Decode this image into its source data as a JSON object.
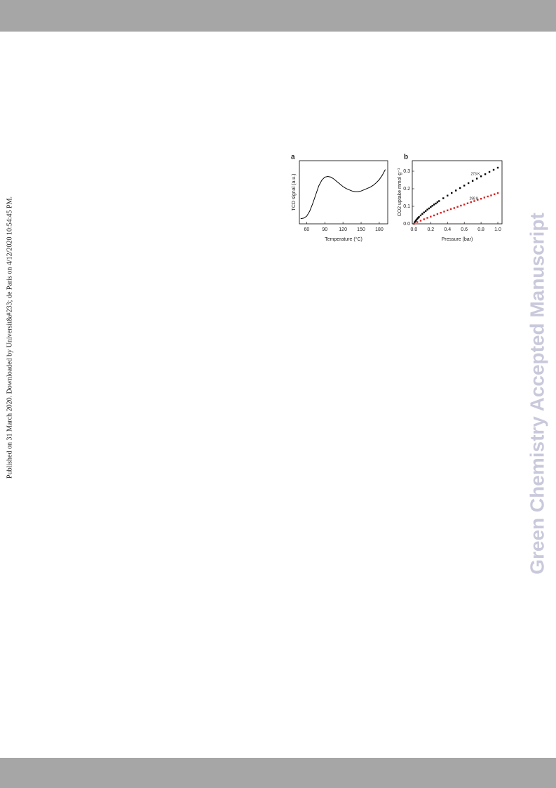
{
  "side_note": "Published on 31 March 2020. Downloaded by Universit&#233; de Paris on 4/12/2020 10:54:45 PM.",
  "watermark": "Green Chemistry Accepted Manuscript",
  "chart_data": [
    {
      "type": "line",
      "panel_label": "a",
      "xlabel": "Temperature (°C)",
      "ylabel": "TCD signal (a.u.)",
      "color": "#000000",
      "x": [
        50,
        55,
        60,
        65,
        70,
        75,
        80,
        85,
        90,
        95,
        100,
        105,
        110,
        115,
        120,
        125,
        130,
        135,
        140,
        145,
        150,
        155,
        160,
        165,
        170,
        175,
        180,
        185,
        190
      ],
      "values": [
        0.08,
        0.09,
        0.12,
        0.2,
        0.32,
        0.46,
        0.6,
        0.69,
        0.74,
        0.75,
        0.74,
        0.71,
        0.67,
        0.63,
        0.59,
        0.56,
        0.54,
        0.52,
        0.51,
        0.51,
        0.52,
        0.54,
        0.56,
        0.58,
        0.61,
        0.65,
        0.7,
        0.77,
        0.86
      ],
      "xlim": [
        48,
        194
      ],
      "ylim": [
        0,
        1
      ],
      "xticks": [
        60,
        90,
        120,
        150,
        180
      ]
    },
    {
      "type": "scatter",
      "panel_label": "b",
      "xlabel": "Pressure (bar)",
      "ylabel": "CO2 uptake mmol·g⁻¹",
      "series": [
        {
          "name": "273 K",
          "color": "#000000",
          "x": [
            0.01,
            0.02,
            0.03,
            0.04,
            0.05,
            0.06,
            0.08,
            0.1,
            0.12,
            0.14,
            0.16,
            0.18,
            0.2,
            0.22,
            0.24,
            0.26,
            0.28,
            0.3,
            0.35,
            0.4,
            0.45,
            0.5,
            0.55,
            0.6,
            0.65,
            0.7,
            0.75,
            0.8,
            0.85,
            0.9,
            0.95,
            1.0
          ],
          "values": [
            0.01,
            0.017,
            0.023,
            0.029,
            0.034,
            0.039,
            0.048,
            0.057,
            0.065,
            0.073,
            0.081,
            0.088,
            0.096,
            0.103,
            0.11,
            0.116,
            0.123,
            0.13,
            0.146,
            0.161,
            0.176,
            0.19,
            0.204,
            0.218,
            0.232,
            0.245,
            0.258,
            0.271,
            0.283,
            0.296,
            0.308,
            0.32
          ]
        },
        {
          "name": "298 K",
          "color": "#d42020",
          "x": [
            0,
            0.04,
            0.08,
            0.12,
            0.16,
            0.2,
            0.24,
            0.28,
            0.32,
            0.36,
            0.4,
            0.44,
            0.48,
            0.52,
            0.56,
            0.6,
            0.64,
            0.68,
            0.72,
            0.76,
            0.8,
            0.84,
            0.88,
            0.92,
            0.96,
            1.0
          ],
          "values": [
            0,
            0.01,
            0.018,
            0.026,
            0.034,
            0.041,
            0.048,
            0.056,
            0.063,
            0.07,
            0.077,
            0.084,
            0.09,
            0.097,
            0.104,
            0.11,
            0.117,
            0.124,
            0.13,
            0.137,
            0.143,
            0.15,
            0.156,
            0.162,
            0.169,
            0.175
          ]
        }
      ],
      "xlim": [
        -0.02,
        1.05
      ],
      "ylim": [
        0,
        0.36
      ],
      "xticks": [
        {
          "value": 0,
          "label": "0.0"
        },
        {
          "value": 0.2,
          "label": "0.2"
        },
        {
          "value": 0.4,
          "label": "0.4"
        },
        {
          "value": 0.6,
          "label": "0.6"
        },
        {
          "value": 0.8,
          "label": "0.8"
        },
        {
          "value": 1,
          "label": "1.0"
        }
      ],
      "yticks": [
        {
          "value": 0,
          "label": "0.0"
        },
        {
          "value": 0.1,
          "label": "0.1"
        },
        {
          "value": 0.2,
          "label": "0.2"
        },
        {
          "value": 0.3,
          "label": "0.3"
        }
      ]
    }
  ]
}
